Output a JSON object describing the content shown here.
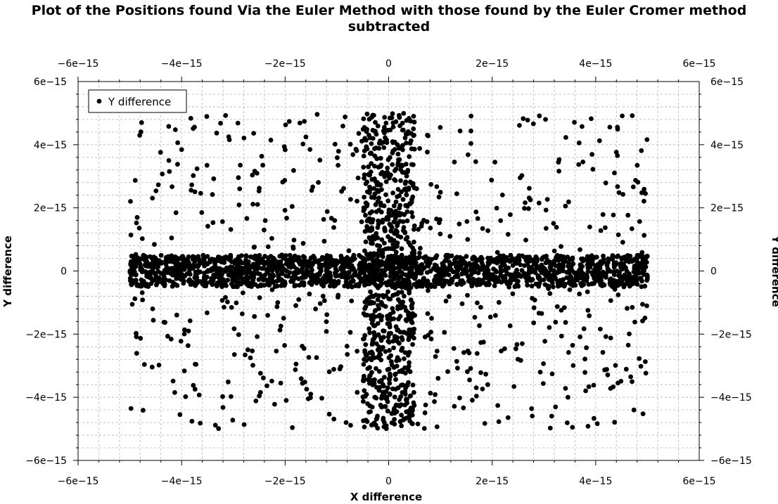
{
  "chart_data": {
    "type": "scatter",
    "title_line1": "Plot of the Positions found Via the Euler Method with those found by the Euler Cromer method",
    "title_line2": "subtracted",
    "xlabel": "X difference",
    "ylabel": "Y difference",
    "ylabel_right": "Y difference",
    "xlim": [
      -6e-15,
      6e-15
    ],
    "ylim": [
      -6e-15,
      6e-15
    ],
    "x_ticks": [
      -6e-15,
      -4e-15,
      -2e-15,
      0,
      2e-15,
      4e-15,
      6e-15
    ],
    "x_tick_labels": [
      "−6e−15",
      "−4e−15",
      "−2e−15",
      "0",
      "2e−15",
      "4e−15",
      "6e−15"
    ],
    "y_ticks": [
      6e-15,
      4e-15,
      2e-15,
      0,
      -2e-15,
      -4e-15,
      -6e-15
    ],
    "y_tick_labels": [
      "6e−15",
      "4e−15",
      "2e−15",
      "0",
      "−2e−15",
      "−4e−15",
      "−6e−15"
    ],
    "grid": true,
    "legend_position": "top-left",
    "series": [
      {
        "name": "Y difference",
        "color": "#000000",
        "marker": "filled-circle",
        "approximate_distribution": {
          "horizontal_band": {
            "x_range": [
              -5e-15,
              5e-15
            ],
            "y_range": [
              -5e-16,
              5e-16
            ],
            "point_count": 1800
          },
          "vertical_band": {
            "x_range": [
              -5e-16,
              5e-16
            ],
            "y_range": [
              -5e-15,
              5e-15
            ],
            "point_count": 700
          },
          "scattered": {
            "x_range": [
              -5e-15,
              5e-15
            ],
            "y_range": [
              -5e-15,
              5e-15
            ],
            "point_count": 650
          }
        }
      }
    ]
  }
}
